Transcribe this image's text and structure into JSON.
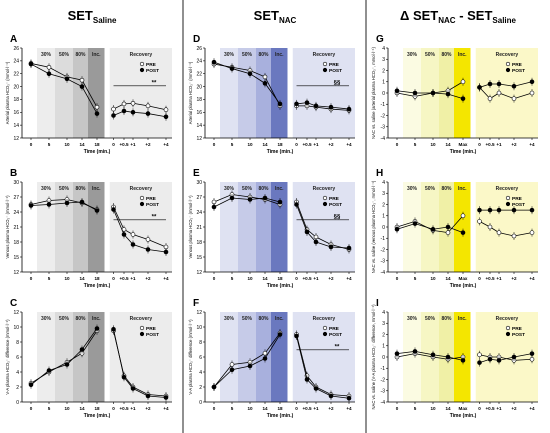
{
  "columns": [
    {
      "title_main": "SET",
      "title_sub": "Saline"
    },
    {
      "title_main": "SET",
      "title_sub": "NAC"
    },
    {
      "title_main": "Δ SET",
      "title_sub1": "NAC",
      "title_mid": " - SET",
      "title_sub2": "Saline"
    }
  ],
  "zones": [
    "30%",
    "50%",
    "80%",
    "Inc.",
    "Recovery"
  ],
  "zones_g": [
    "30%",
    "50%",
    "80%",
    "Inc.",
    "Recovery"
  ],
  "xlabel": "Time (min.)",
  "legend": [
    "PRE",
    "POST"
  ],
  "colors": {
    "saline_shade": "#9a9a9a",
    "nac_shade": "#6a78bf",
    "delta_shade": "#f4e600"
  },
  "chart_data": [
    {
      "panel": "A",
      "type": "line",
      "ylabel": "Arterial plasma HCO₃⁻ (mmol·l⁻¹)",
      "ylim": [
        12,
        26
      ],
      "yticks": [
        12,
        14,
        16,
        18,
        20,
        22,
        24,
        26
      ],
      "exercise_x": [
        "0",
        "5",
        "10",
        "14",
        "18"
      ],
      "recovery_x": [
        "0",
        "+0.5",
        "+1",
        "+2",
        "+4"
      ],
      "series": [
        {
          "name": "PRE",
          "exercise": [
            23.6,
            23.0,
            21.5,
            21.0,
            16.8
          ],
          "recovery": [
            16.5,
            17.3,
            17.4,
            17.0,
            16.4
          ]
        },
        {
          "name": "POST",
          "exercise": [
            23.5,
            22.0,
            21.2,
            20.0,
            15.8
          ],
          "recovery": [
            15.5,
            16.2,
            16.0,
            15.8,
            15.3
          ]
        }
      ],
      "annotation": "**"
    },
    {
      "panel": "B",
      "type": "line",
      "ylabel": "Venous plasma HCO₃⁻ (mmol·l⁻¹)",
      "ylim": [
        12,
        30
      ],
      "yticks": [
        12,
        15,
        18,
        21,
        24,
        27,
        30
      ],
      "exercise_x": [
        "0",
        "5",
        "10",
        "14",
        "18"
      ],
      "recovery_x": [
        "0",
        "+0.5",
        "+1",
        "+2",
        "+4"
      ],
      "series": [
        {
          "name": "PRE",
          "exercise": [
            25.5,
            26.3,
            26.5,
            25.8,
            24.5
          ],
          "recovery": [
            25.0,
            20.5,
            19.5,
            18.5,
            17.0
          ]
        },
        {
          "name": "POST",
          "exercise": [
            25.3,
            25.5,
            25.8,
            26.0,
            24.3
          ],
          "recovery": [
            24.5,
            19.5,
            17.5,
            16.5,
            16.0
          ]
        }
      ],
      "annotation": "**"
    },
    {
      "panel": "C",
      "type": "line",
      "ylabel": "V-A plasma HCO₃⁻ difference (mmol·l⁻¹)",
      "ylim": [
        0,
        12
      ],
      "yticks": [
        0,
        2,
        4,
        6,
        8,
        10,
        12
      ],
      "exercise_x": [
        "0",
        "5",
        "10",
        "14",
        "18"
      ],
      "recovery_x": [
        "0",
        "+0.5",
        "+1",
        "+2",
        "+4"
      ],
      "series": [
        {
          "name": "PRE",
          "exercise": [
            2.5,
            4.0,
            5.3,
            6.5,
            9.5
          ],
          "recovery": [
            9.5,
            3.5,
            2.0,
            1.0,
            0.8
          ]
        },
        {
          "name": "POST",
          "exercise": [
            2.3,
            4.2,
            5.0,
            7.0,
            9.8
          ],
          "recovery": [
            9.7,
            3.3,
            1.8,
            0.8,
            0.6
          ]
        }
      ],
      "annotation": ""
    },
    {
      "panel": "D",
      "type": "line",
      "ylabel": "Arterial plasma HCO₃⁻ (mmol·l⁻¹)",
      "ylim": [
        12,
        26
      ],
      "yticks": [
        12,
        14,
        16,
        18,
        20,
        22,
        24,
        26
      ],
      "exercise_x": [
        "0",
        "5",
        "10",
        "14",
        "18"
      ],
      "recovery_x": [
        "0",
        "+0.5",
        "+1",
        "+2",
        "+4"
      ],
      "series": [
        {
          "name": "PRE",
          "exercise": [
            23.5,
            23.0,
            22.5,
            21.5,
            17.0
          ],
          "recovery": [
            17.0,
            17.0,
            16.8,
            16.5,
            16.3
          ]
        },
        {
          "name": "POST",
          "exercise": [
            23.8,
            22.8,
            22.0,
            20.5,
            17.3
          ],
          "recovery": [
            17.3,
            17.5,
            17.0,
            16.8,
            16.5
          ]
        }
      ],
      "annotation": "§§"
    },
    {
      "panel": "E",
      "type": "line",
      "ylabel": "Venous plasma HCO₃⁻ (mmol·l⁻¹)",
      "ylim": [
        12,
        30
      ],
      "yticks": [
        12,
        15,
        18,
        21,
        24,
        27,
        30
      ],
      "exercise_x": [
        "0",
        "5",
        "10",
        "14",
        "18"
      ],
      "recovery_x": [
        "0",
        "+0.5",
        "+1",
        "+2",
        "+4"
      ],
      "series": [
        {
          "name": "PRE",
          "exercise": [
            26.0,
            27.5,
            27.0,
            26.5,
            25.5
          ],
          "recovery": [
            26.0,
            20.5,
            19.0,
            17.5,
            16.5
          ]
        },
        {
          "name": "POST",
          "exercise": [
            25.0,
            26.8,
            26.5,
            26.8,
            26.0
          ],
          "recovery": [
            25.5,
            20.0,
            18.0,
            17.0,
            16.8
          ]
        }
      ],
      "annotation": "§§"
    },
    {
      "panel": "F",
      "type": "line",
      "ylabel": "V-A plasma HCO₃⁻ difference (mmol·l⁻¹)",
      "ylim": [
        0,
        12
      ],
      "yticks": [
        0,
        2,
        4,
        6,
        8,
        10,
        12
      ],
      "exercise_x": [
        "0",
        "5",
        "10",
        "14",
        "18"
      ],
      "recovery_x": [
        "0",
        "+0.5",
        "+1",
        "+2",
        "+4"
      ],
      "series": [
        {
          "name": "PRE",
          "exercise": [
            2.0,
            5.0,
            5.3,
            6.5,
            9.2
          ],
          "recovery": [
            9.0,
            3.5,
            2.0,
            1.0,
            0.8
          ]
        },
        {
          "name": "POST",
          "exercise": [
            2.0,
            4.3,
            4.8,
            5.8,
            9.0
          ],
          "recovery": [
            8.8,
            3.0,
            1.8,
            0.8,
            0.5
          ]
        }
      ],
      "annotation": "**"
    },
    {
      "panel": "G",
      "type": "line",
      "ylabel": "NAC vs. saline (arterial plasma HCO₃⁻, mmol·l⁻¹)",
      "ylim": [
        -4,
        4
      ],
      "yticks": [
        -4,
        -3,
        -2,
        -1,
        0,
        1,
        2,
        3,
        4
      ],
      "exercise_x": [
        "0",
        "5",
        "10",
        "14",
        "Max"
      ],
      "recovery_x": [
        "0",
        "+0.5",
        "+1",
        "+2",
        "+4"
      ],
      "series": [
        {
          "name": "PRE",
          "exercise": [
            0.0,
            -0.3,
            0.0,
            0.2,
            1.0
          ],
          "recovery": [
            0.5,
            -0.5,
            0.0,
            -0.5,
            0.0
          ]
        },
        {
          "name": "POST",
          "exercise": [
            0.2,
            0.0,
            0.0,
            -0.1,
            -0.5
          ],
          "recovery": [
            0.5,
            0.8,
            0.8,
            0.6,
            1.0
          ]
        }
      ],
      "annotation": ""
    },
    {
      "panel": "H",
      "type": "line",
      "ylabel": "NAC vs. saline (venous plasma HCO₃⁻, mmol·l⁻¹)",
      "ylim": [
        -4,
        4
      ],
      "yticks": [
        -4,
        -3,
        -2,
        -1,
        0,
        1,
        2,
        3,
        4
      ],
      "exercise_x": [
        "0",
        "5",
        "10",
        "14",
        "Max"
      ],
      "recovery_x": [
        "0",
        "+0.5",
        "+1",
        "+2",
        "+4"
      ],
      "series": [
        {
          "name": "PRE",
          "exercise": [
            0.0,
            0.5,
            -0.3,
            -0.5,
            1.0
          ],
          "recovery": [
            0.5,
            0.0,
            -0.5,
            -0.8,
            -0.5
          ]
        },
        {
          "name": "POST",
          "exercise": [
            -0.2,
            0.3,
            -0.2,
            0.0,
            -0.5
          ],
          "recovery": [
            1.5,
            1.5,
            1.5,
            1.5,
            1.5
          ]
        }
      ],
      "annotation": ""
    },
    {
      "panel": "I",
      "type": "line",
      "ylabel": "NAC vs. saline (V-A plasma HCO₃⁻ difference, mmol·l⁻¹)",
      "ylim": [
        -4,
        4
      ],
      "yticks": [
        -4,
        -3,
        -2,
        -1,
        0,
        1,
        2,
        3,
        4
      ],
      "exercise_x": [
        "0",
        "5",
        "10",
        "14",
        "Max"
      ],
      "recovery_x": [
        "0",
        "+0.5",
        "+1",
        "+2",
        "+4"
      ],
      "series": [
        {
          "name": "PRE",
          "exercise": [
            0.0,
            0.3,
            0.0,
            -0.2,
            0.0
          ],
          "recovery": [
            0.2,
            0.0,
            0.0,
            -0.3,
            -0.2
          ]
        },
        {
          "name": "POST",
          "exercise": [
            0.3,
            0.5,
            0.2,
            0.0,
            -0.3
          ],
          "recovery": [
            -0.5,
            -0.2,
            -0.3,
            0.0,
            0.3
          ]
        }
      ],
      "annotation": ""
    }
  ]
}
